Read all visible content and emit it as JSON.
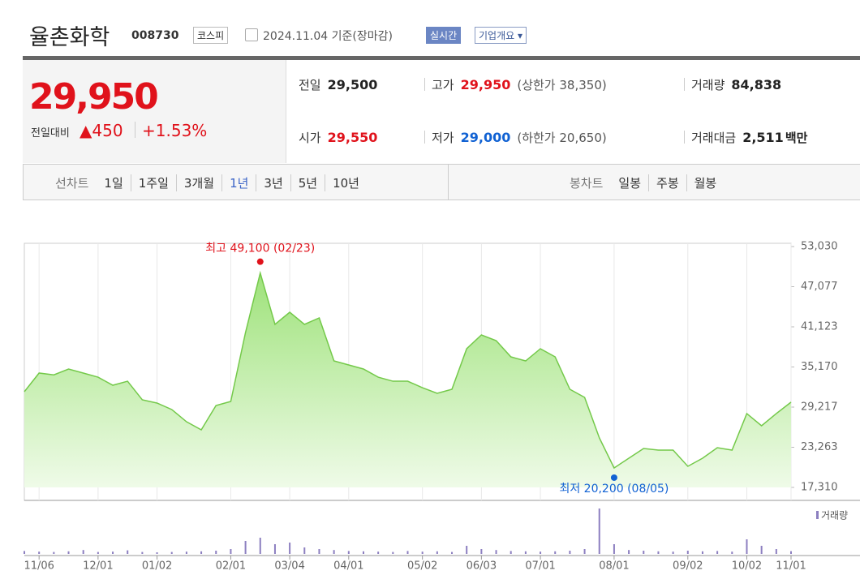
{
  "header": {
    "title": "율촌화학",
    "code": "008730",
    "market": "코스피",
    "date": "2024.11.04",
    "basis": "기준(장마감)",
    "realtime": "실시간",
    "company": "기업개요"
  },
  "quote": {
    "price": "29,950",
    "change_label": "전일대비",
    "change": "450",
    "change_pct": "+1.53%",
    "items": [
      {
        "label": "전일",
        "value": "29,500"
      },
      {
        "label": "고가",
        "value": "29,950",
        "sub": "(상한가 38,350)"
      },
      {
        "label": "거래량",
        "value": "84,838"
      },
      {
        "label": "시가",
        "value": "29,550"
      },
      {
        "label": "저가",
        "value": "29,000",
        "sub": "(하한가 20,650)"
      },
      {
        "label": "거래대금",
        "value": "2,511",
        "unit": "백만"
      }
    ]
  },
  "tabs": {
    "line_label": "선차트",
    "line": [
      "1일",
      "1주일",
      "3개월",
      "1년",
      "3년",
      "5년",
      "10년"
    ],
    "active": "1년",
    "candle_label": "봉차트",
    "candle": [
      "일봉",
      "주봉",
      "월봉"
    ]
  },
  "chart_data": {
    "type": "line",
    "categories": [
      null,
      "11/06",
      null,
      null,
      null,
      "12/01",
      null,
      null,
      null,
      "01/02",
      null,
      null,
      null,
      null,
      "02/01",
      null,
      null,
      null,
      "03/04",
      null,
      null,
      null,
      "04/01",
      null,
      null,
      null,
      null,
      "05/02",
      null,
      null,
      null,
      "06/03",
      null,
      null,
      null,
      "07/01",
      null,
      null,
      null,
      null,
      "08/01",
      null,
      null,
      null,
      null,
      "09/02",
      null,
      null,
      null,
      "10/02",
      null,
      null,
      "11/01"
    ],
    "series": [
      {
        "color": "#74c94a",
        "values": [
          31500,
          34270,
          34000,
          34860,
          34270,
          33660,
          32460,
          33060,
          30300,
          29820,
          28860,
          27050,
          25850,
          29460,
          30060,
          40280,
          49100,
          41490,
          43290,
          41490,
          42450,
          36070,
          35470,
          34870,
          33660,
          33060,
          33060,
          32100,
          31260,
          31860,
          37880,
          39920,
          39080,
          36670,
          36070,
          37880,
          36670,
          31860,
          30660,
          24650,
          20200,
          21640,
          23080,
          22840,
          22840,
          20440,
          21640,
          23200,
          22840,
          28260,
          26450,
          28260,
          29950
        ]
      },
      {
        "name": "거래량",
        "type": "bar",
        "color": "#8c7fc0",
        "values": [
          90000,
          70000,
          60000,
          80000,
          120000,
          60000,
          70000,
          110000,
          60000,
          50000,
          60000,
          70000,
          80000,
          100000,
          150000,
          400000,
          500000,
          300000,
          350000,
          200000,
          150000,
          120000,
          90000,
          80000,
          70000,
          60000,
          90000,
          70000,
          80000,
          60000,
          250000,
          150000,
          120000,
          90000,
          80000,
          70000,
          80000,
          100000,
          150000,
          1400000,
          300000,
          120000,
          100000,
          80000,
          70000,
          100000,
          80000,
          90000,
          70000,
          450000,
          250000,
          150000,
          84838
        ]
      }
    ],
    "ylim": [
      17310,
      53030
    ],
    "yticks": [
      {
        "value": 53030,
        "label": "53,030"
      },
      {
        "value": 47077,
        "label": "47,077"
      },
      {
        "value": 41123,
        "label": "41,123"
      },
      {
        "value": 35170,
        "label": "35,170"
      },
      {
        "value": 29217,
        "label": "29,217"
      },
      {
        "value": 23263,
        "label": "23,263"
      },
      {
        "value": 17310,
        "label": "17,310"
      }
    ],
    "annotations": [
      {
        "text": "최고 49,100 (02/23)",
        "value": 49100,
        "color": "#e0121b",
        "side": "above"
      },
      {
        "text": "최저 20,200 (08/05)",
        "value": 20200,
        "color": "#1162d3",
        "side": "below"
      }
    ]
  }
}
